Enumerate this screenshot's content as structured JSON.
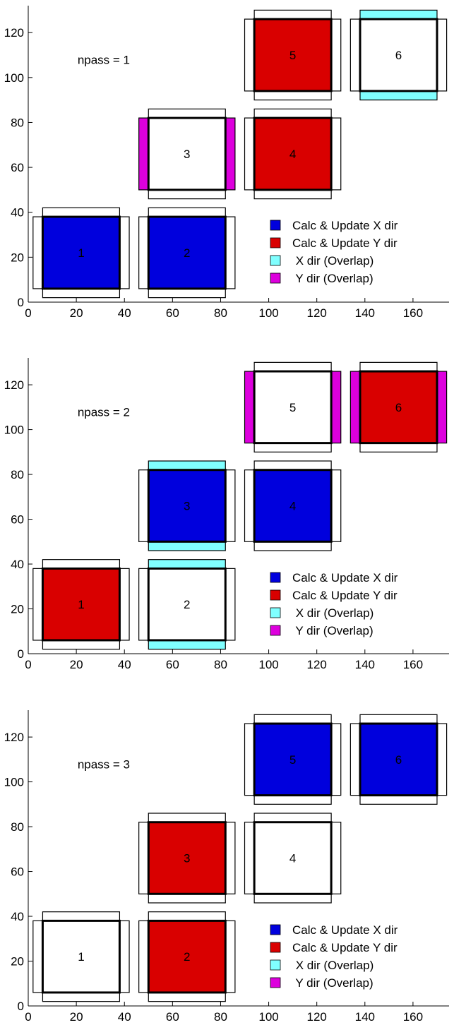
{
  "legend": [
    {
      "label": "Calc & Update X dir",
      "color": "#0000dd"
    },
    {
      "label": "Calc & Update Y dir",
      "color": "#d90000"
    },
    {
      "label": " X dir (Overlap)",
      "color": "#80ffff"
    },
    {
      "label": " Y dir (Overlap)",
      "color": "#dd00dd"
    }
  ],
  "chart_data": [
    {
      "type": "rect-tiles",
      "annotation": "npass = 1",
      "xlim": [
        0,
        175
      ],
      "ylim": [
        0,
        132
      ],
      "xticks": [
        0,
        20,
        40,
        60,
        80,
        100,
        120,
        140,
        160
      ],
      "yticks": [
        0,
        20,
        40,
        60,
        80,
        100,
        120
      ],
      "tiles": [
        {
          "label": "1",
          "x": [
            6,
            38
          ],
          "y": [
            6,
            38
          ],
          "fill": "blue",
          "overlap": "none"
        },
        {
          "label": "2",
          "x": [
            50,
            82
          ],
          "y": [
            6,
            38
          ],
          "fill": "blue",
          "overlap": "none"
        },
        {
          "label": "3",
          "x": [
            50,
            82
          ],
          "y": [
            50,
            82
          ],
          "fill": "none",
          "overlap": "y"
        },
        {
          "label": "4",
          "x": [
            94,
            126
          ],
          "y": [
            50,
            82
          ],
          "fill": "red",
          "overlap": "none"
        },
        {
          "label": "5",
          "x": [
            94,
            126
          ],
          "y": [
            94,
            126
          ],
          "fill": "red",
          "overlap": "none"
        },
        {
          "label": "6",
          "x": [
            138,
            170
          ],
          "y": [
            94,
            126
          ],
          "fill": "none",
          "overlap": "x"
        }
      ]
    },
    {
      "type": "rect-tiles",
      "annotation": "npass = 2",
      "xlim": [
        0,
        175
      ],
      "ylim": [
        0,
        132
      ],
      "xticks": [
        0,
        20,
        40,
        60,
        80,
        100,
        120,
        140,
        160
      ],
      "yticks": [
        0,
        20,
        40,
        60,
        80,
        100,
        120
      ],
      "tiles": [
        {
          "label": "1",
          "x": [
            6,
            38
          ],
          "y": [
            6,
            38
          ],
          "fill": "red",
          "overlap": "none"
        },
        {
          "label": "2",
          "x": [
            50,
            82
          ],
          "y": [
            6,
            38
          ],
          "fill": "none",
          "overlap": "x"
        },
        {
          "label": "3",
          "x": [
            50,
            82
          ],
          "y": [
            50,
            82
          ],
          "fill": "blue",
          "overlap": "x"
        },
        {
          "label": "4",
          "x": [
            94,
            126
          ],
          "y": [
            50,
            82
          ],
          "fill": "blue",
          "overlap": "none"
        },
        {
          "label": "5",
          "x": [
            94,
            126
          ],
          "y": [
            94,
            126
          ],
          "fill": "none",
          "overlap": "y"
        },
        {
          "label": "6",
          "x": [
            138,
            170
          ],
          "y": [
            94,
            126
          ],
          "fill": "red",
          "overlap": "y"
        }
      ]
    },
    {
      "type": "rect-tiles",
      "annotation": "npass = 3",
      "xlim": [
        0,
        175
      ],
      "ylim": [
        0,
        132
      ],
      "xticks": [
        0,
        20,
        40,
        60,
        80,
        100,
        120,
        140,
        160
      ],
      "yticks": [
        0,
        20,
        40,
        60,
        80,
        100,
        120
      ],
      "tiles": [
        {
          "label": "1",
          "x": [
            6,
            38
          ],
          "y": [
            6,
            38
          ],
          "fill": "none",
          "overlap": "none"
        },
        {
          "label": "2",
          "x": [
            50,
            82
          ],
          "y": [
            6,
            38
          ],
          "fill": "red",
          "overlap": "none"
        },
        {
          "label": "3",
          "x": [
            50,
            82
          ],
          "y": [
            50,
            82
          ],
          "fill": "red",
          "overlap": "none"
        },
        {
          "label": "4",
          "x": [
            94,
            126
          ],
          "y": [
            50,
            82
          ],
          "fill": "none",
          "overlap": "none"
        },
        {
          "label": "5",
          "x": [
            94,
            126
          ],
          "y": [
            94,
            126
          ],
          "fill": "blue",
          "overlap": "none"
        },
        {
          "label": "6",
          "x": [
            138,
            170
          ],
          "y": [
            94,
            126
          ],
          "fill": "blue",
          "overlap": "none"
        }
      ]
    }
  ]
}
